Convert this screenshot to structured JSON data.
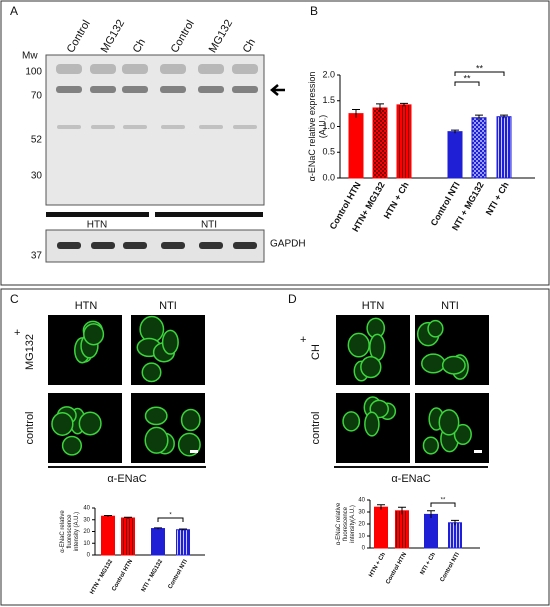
{
  "figure": {
    "panel_a": {
      "letter": "A",
      "lanes": [
        "Control",
        "MG132",
        "Ch",
        "Control",
        "MG132",
        "Ch"
      ],
      "mw_label": "Mw",
      "markers": [
        100,
        70,
        52,
        30
      ],
      "groups": [
        "HTN",
        "NTI"
      ],
      "loading_label": "GAPDH",
      "loading_marker": 37
    },
    "panel_b_letter": "B",
    "panel_c": {
      "letter": "C",
      "columns": [
        "HTN",
        "NTI"
      ],
      "treatment_sign": "+",
      "treatment": "MG132",
      "control": "control",
      "stain": "α-ENaC"
    },
    "panel_d": {
      "letter": "D",
      "columns": [
        "HTN",
        "NTI"
      ],
      "treatment_sign": "+",
      "treatment": "CH",
      "control": "control",
      "stain": "α-ENaC"
    }
  },
  "chart_data": [
    {
      "type": "bar",
      "ylabel": [
        "α-ENaC relative expression",
        "(A.U.)"
      ],
      "categories": [
        "Control HTN",
        "HTN+ MG132",
        "HTN + Ch",
        "Control NTI",
        "NTI + MG132",
        "NTI + Ch"
      ],
      "values": [
        1.25,
        1.36,
        1.42,
        0.9,
        1.17,
        1.19
      ],
      "errors": [
        0.08,
        0.08,
        0.03,
        0.03,
        0.05,
        0.03
      ],
      "colors": [
        "#ff0000",
        "#ff0000",
        "#ff0000",
        "#1f1fd6",
        "#1f1fd6",
        "#1f1fd6"
      ],
      "patterns": [
        "solid",
        "check",
        "stripes",
        "solid",
        "check",
        "stripes"
      ],
      "ylim": [
        0,
        2
      ],
      "yticks": [
        {
          "value": 0,
          "label": "0.0"
        },
        0.5,
        {
          "value": 1,
          "label": "1.0"
        },
        1.5,
        {
          "value": 2,
          "label": "2.0"
        }
      ],
      "annotations": [
        "**",
        "**"
      ]
    },
    {
      "type": "bar",
      "ylabel": [
        "α-ENaC relative",
        "fluorescence",
        "intensity (A.U.)"
      ],
      "categories": [
        "HTN + MG132",
        "Control HTN",
        "NTI + MG132",
        "Control NTI"
      ],
      "values": [
        33,
        31.5,
        22.5,
        21.5
      ],
      "errors": [
        0.6,
        0.6,
        0.6,
        0.6
      ],
      "colors": [
        "#ff0000",
        "#ff0000",
        "#1f1fd6",
        "#1f1fd6"
      ],
      "patterns": [
        "solid",
        "stripes",
        "solid",
        "stripes"
      ],
      "ylim": [
        0,
        40
      ],
      "yticks": [
        0,
        10,
        20,
        30,
        40
      ],
      "annotations": [
        "*"
      ]
    },
    {
      "type": "bar",
      "ylabel": [
        "α-ENaC relative",
        "fluorescence",
        "intensity(A.U.)"
      ],
      "categories": [
        "HTN + Ch",
        "Control HTN",
        "NTI + Ch",
        "Control NTI"
      ],
      "values": [
        34,
        31,
        28,
        21
      ],
      "errors": [
        2,
        3,
        3,
        2
      ],
      "colors": [
        "#ff0000",
        "#ff0000",
        "#1f1fd6",
        "#1f1fd6"
      ],
      "patterns": [
        "solid",
        "stripes",
        "solid",
        "stripes"
      ],
      "ylim": [
        0,
        40
      ],
      "yticks": [
        0,
        10,
        20,
        30,
        40
      ],
      "annotations": [
        "**"
      ]
    }
  ]
}
